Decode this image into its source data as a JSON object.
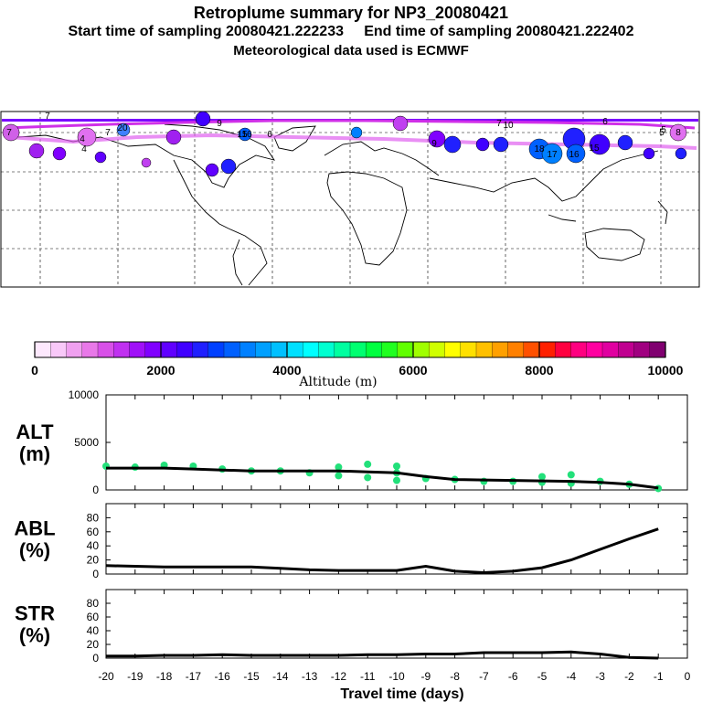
{
  "header": {
    "title": "Retroplume summary for NP3_20080421",
    "sampling_line": "Start time of sampling 20080421.222233     End time of sampling 20080421.222402",
    "met_line": "Meteorological data used is ECMWF"
  },
  "colorbar": {
    "ticks": [
      "0",
      "2000",
      "4000",
      "6000",
      "8000",
      "10000"
    ],
    "caption": "Altitude (m)",
    "colors": [
      "#fde8fd",
      "#f8c8f8",
      "#f0a0f0",
      "#e878e8",
      "#d850e8",
      "#c030f0",
      "#a010f8",
      "#8000ff",
      "#6000ff",
      "#4000ff",
      "#2020ff",
      "#0040ff",
      "#0060ff",
      "#0080ff",
      "#00a0ff",
      "#00c0ff",
      "#00e0ff",
      "#00ffff",
      "#00ffd0",
      "#00ffa0",
      "#00ff70",
      "#00ff40",
      "#20ff20",
      "#60ff00",
      "#a0ff00",
      "#d0ff00",
      "#ffff00",
      "#ffe000",
      "#ffc000",
      "#ffa000",
      "#ff8000",
      "#ff5000",
      "#ff2000",
      "#ff0040",
      "#ff0080",
      "#ff00a0",
      "#e000a0",
      "#c00090",
      "#a00080",
      "#800070"
    ]
  },
  "map": {
    "label_numbers": [
      "7",
      "7",
      "4",
      "7",
      "20",
      "9",
      "15",
      "16",
      "6",
      "9",
      "5",
      "7",
      "10",
      "4",
      "18",
      "17",
      "16",
      "15",
      "6",
      "5",
      "8"
    ]
  },
  "colors": {
    "line": "#000000",
    "scatter": "#22e07a",
    "plume_track": "#7a00ff"
  },
  "chart_data": [
    {
      "type": "line",
      "name": "ALT",
      "ylabel": "ALT\n(m)",
      "ylabel_line1": "ALT",
      "ylabel_line2": "(m)",
      "ylim": [
        0,
        10000
      ],
      "yticks": [
        "0",
        "5000",
        "10000"
      ],
      "x": [
        -20,
        -19,
        -18,
        -17,
        -16,
        -15,
        -14,
        -13,
        -12,
        -11,
        -10,
        -9,
        -8,
        -7,
        -6,
        -5,
        -4,
        -3,
        -2,
        -1
      ],
      "values": [
        2300,
        2300,
        2300,
        2200,
        2100,
        2000,
        2000,
        2000,
        2000,
        1900,
        1800,
        1400,
        1100,
        1050,
        1000,
        950,
        900,
        800,
        600,
        200
      ],
      "scatter": [
        {
          "x": -20,
          "y": 2500
        },
        {
          "x": -19,
          "y": 2400
        },
        {
          "x": -18,
          "y": 2600
        },
        {
          "x": -17,
          "y": 2500
        },
        {
          "x": -16,
          "y": 2200
        },
        {
          "x": -15,
          "y": 2000
        },
        {
          "x": -14,
          "y": 2000
        },
        {
          "x": -13,
          "y": 1800
        },
        {
          "x": -12,
          "y": 2400
        },
        {
          "x": -12,
          "y": 1500
        },
        {
          "x": -11,
          "y": 2700
        },
        {
          "x": -11,
          "y": 1300
        },
        {
          "x": -10,
          "y": 2500
        },
        {
          "x": -10,
          "y": 1800
        },
        {
          "x": -10,
          "y": 1000
        },
        {
          "x": -9,
          "y": 1200
        },
        {
          "x": -8,
          "y": 1100
        },
        {
          "x": -7,
          "y": 900
        },
        {
          "x": -6,
          "y": 900
        },
        {
          "x": -5,
          "y": 1400
        },
        {
          "x": -5,
          "y": 800
        },
        {
          "x": -4,
          "y": 1600
        },
        {
          "x": -4,
          "y": 700
        },
        {
          "x": -3,
          "y": 900
        },
        {
          "x": -2,
          "y": 600
        },
        {
          "x": -1,
          "y": 150
        }
      ]
    },
    {
      "type": "line",
      "name": "ABL",
      "ylabel_line1": "ABL",
      "ylabel_line2": "(%)",
      "ylim": [
        0,
        100
      ],
      "yticks": [
        "0",
        "20",
        "40",
        "60",
        "80"
      ],
      "x": [
        -20,
        -19,
        -18,
        -17,
        -16,
        -15,
        -14,
        -13,
        -12,
        -11,
        -10,
        -9,
        -8,
        -7,
        -6,
        -5,
        -4,
        -3,
        -2,
        -1
      ],
      "values": [
        12,
        11,
        10,
        10,
        10,
        10,
        8,
        6,
        5,
        5,
        5,
        11,
        4,
        2,
        4,
        9,
        20,
        35,
        50,
        64
      ]
    },
    {
      "type": "line",
      "name": "STR",
      "ylabel_line1": "STR",
      "ylabel_line2": "(%)",
      "ylim": [
        0,
        100
      ],
      "yticks": [
        "0",
        "20",
        "40",
        "60",
        "80"
      ],
      "x": [
        -20,
        -19,
        -18,
        -17,
        -16,
        -15,
        -14,
        -13,
        -12,
        -11,
        -10,
        -9,
        -8,
        -7,
        -6,
        -5,
        -4,
        -3,
        -2,
        -1
      ],
      "values": [
        3,
        3,
        4,
        4,
        5,
        4,
        4,
        4,
        4,
        5,
        5,
        6,
        6,
        8,
        8,
        8,
        9,
        6,
        1,
        0
      ]
    }
  ],
  "xaxis": {
    "ticks": [
      "-20",
      "-19",
      "-18",
      "-17",
      "-16",
      "-15",
      "-14",
      "-13",
      "-12",
      "-11",
      "-10",
      "-9",
      "-8",
      "-7",
      "-6",
      "-5",
      "-4",
      "-3",
      "-2",
      "-1",
      "0"
    ],
    "label": "Travel time (days)"
  }
}
